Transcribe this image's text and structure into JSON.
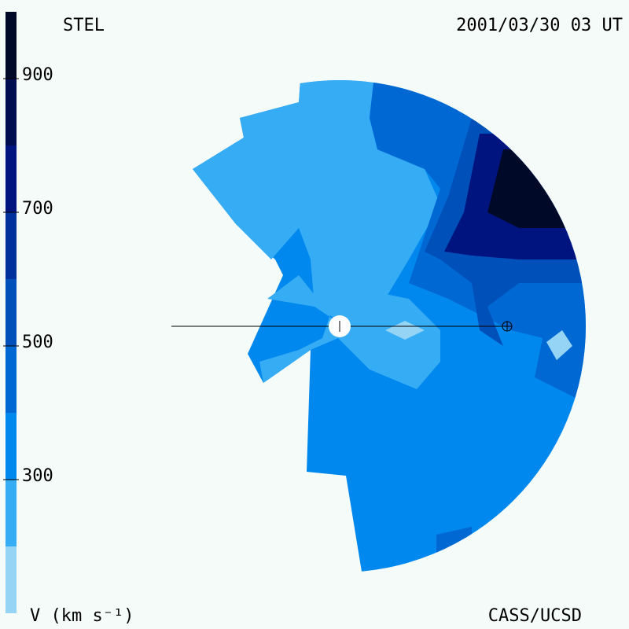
{
  "header": {
    "left": "STEL",
    "right": "2001/03/30 03 UT"
  },
  "footer": {
    "left": "V (km s⁻¹)",
    "right": "CASS/UCSD"
  },
  "colorbar": {
    "range": [
      100,
      1000
    ],
    "ticks": [
      300,
      500,
      700,
      900
    ],
    "bands": [
      {
        "from": 100,
        "to": 200,
        "color": "#96d4f6"
      },
      {
        "from": 200,
        "to": 300,
        "color": "#36acf4"
      },
      {
        "from": 300,
        "to": 400,
        "color": "#0088ee"
      },
      {
        "from": 400,
        "to": 500,
        "color": "#0068d2"
      },
      {
        "from": 500,
        "to": 600,
        "color": "#0050ba"
      },
      {
        "from": 600,
        "to": 700,
        "color": "#00309c"
      },
      {
        "from": 700,
        "to": 800,
        "color": "#001480"
      },
      {
        "from": 800,
        "to": 900,
        "color": "#000c50"
      },
      {
        "from": 900,
        "to": 1000,
        "color": "#000a28"
      }
    ]
  }
}
